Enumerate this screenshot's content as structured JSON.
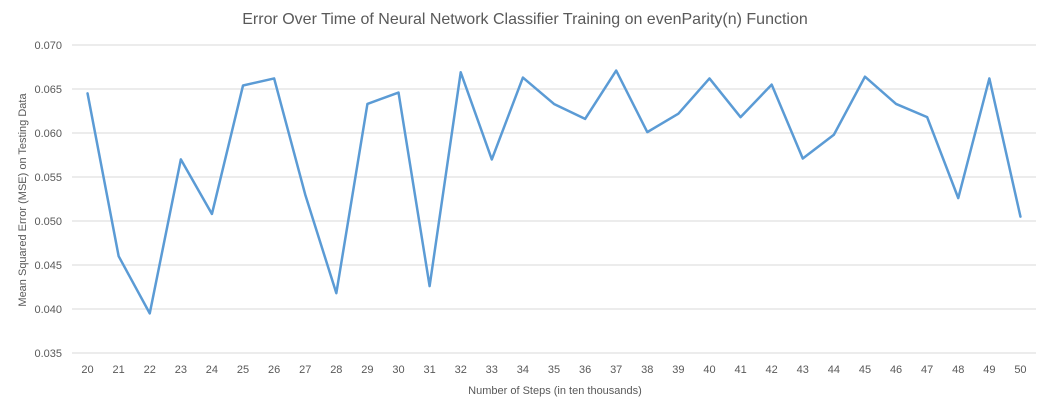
{
  "chart_data": {
    "type": "line",
    "title": "Error Over Time of Neural Network Classifier Training on evenParity(n) Function",
    "xlabel": "Number of Steps (in ten thousands)",
    "ylabel": "Mean Squared Error (MSE) on Testing Data",
    "x": [
      20,
      21,
      22,
      23,
      24,
      25,
      26,
      27,
      28,
      29,
      30,
      31,
      32,
      33,
      34,
      35,
      36,
      37,
      38,
      39,
      40,
      41,
      42,
      43,
      44,
      45,
      46,
      47,
      48,
      49,
      50
    ],
    "series": [
      {
        "values": [
          0.0645,
          0.046,
          0.0395,
          0.057,
          0.0508,
          0.0654,
          0.0662,
          0.053,
          0.0418,
          0.0633,
          0.0646,
          0.0426,
          0.0669,
          0.057,
          0.0663,
          0.0633,
          0.0616,
          0.0671,
          0.0601,
          0.0622,
          0.0662,
          0.0618,
          0.0655,
          0.0571,
          0.0598,
          0.0664,
          0.0633,
          0.0618,
          0.0526,
          0.0662,
          0.0505
        ]
      }
    ],
    "ylim": [
      0.035,
      0.07
    ],
    "yticks": [
      "0.035",
      "0.040",
      "0.045",
      "0.050",
      "0.055",
      "0.060",
      "0.065",
      "0.070"
    ],
    "xticks": [
      "20",
      "21",
      "22",
      "23",
      "24",
      "25",
      "26",
      "27",
      "28",
      "29",
      "30",
      "31",
      "32",
      "33",
      "34",
      "35",
      "36",
      "37",
      "38",
      "39",
      "40",
      "41",
      "42",
      "43",
      "44",
      "45",
      "46",
      "47",
      "48",
      "49",
      "50"
    ],
    "grid": "horizontal",
    "legend": "none",
    "colors": {
      "series": "#5b9bd5",
      "grid": "#d9d9d9",
      "text": "#595959"
    }
  }
}
